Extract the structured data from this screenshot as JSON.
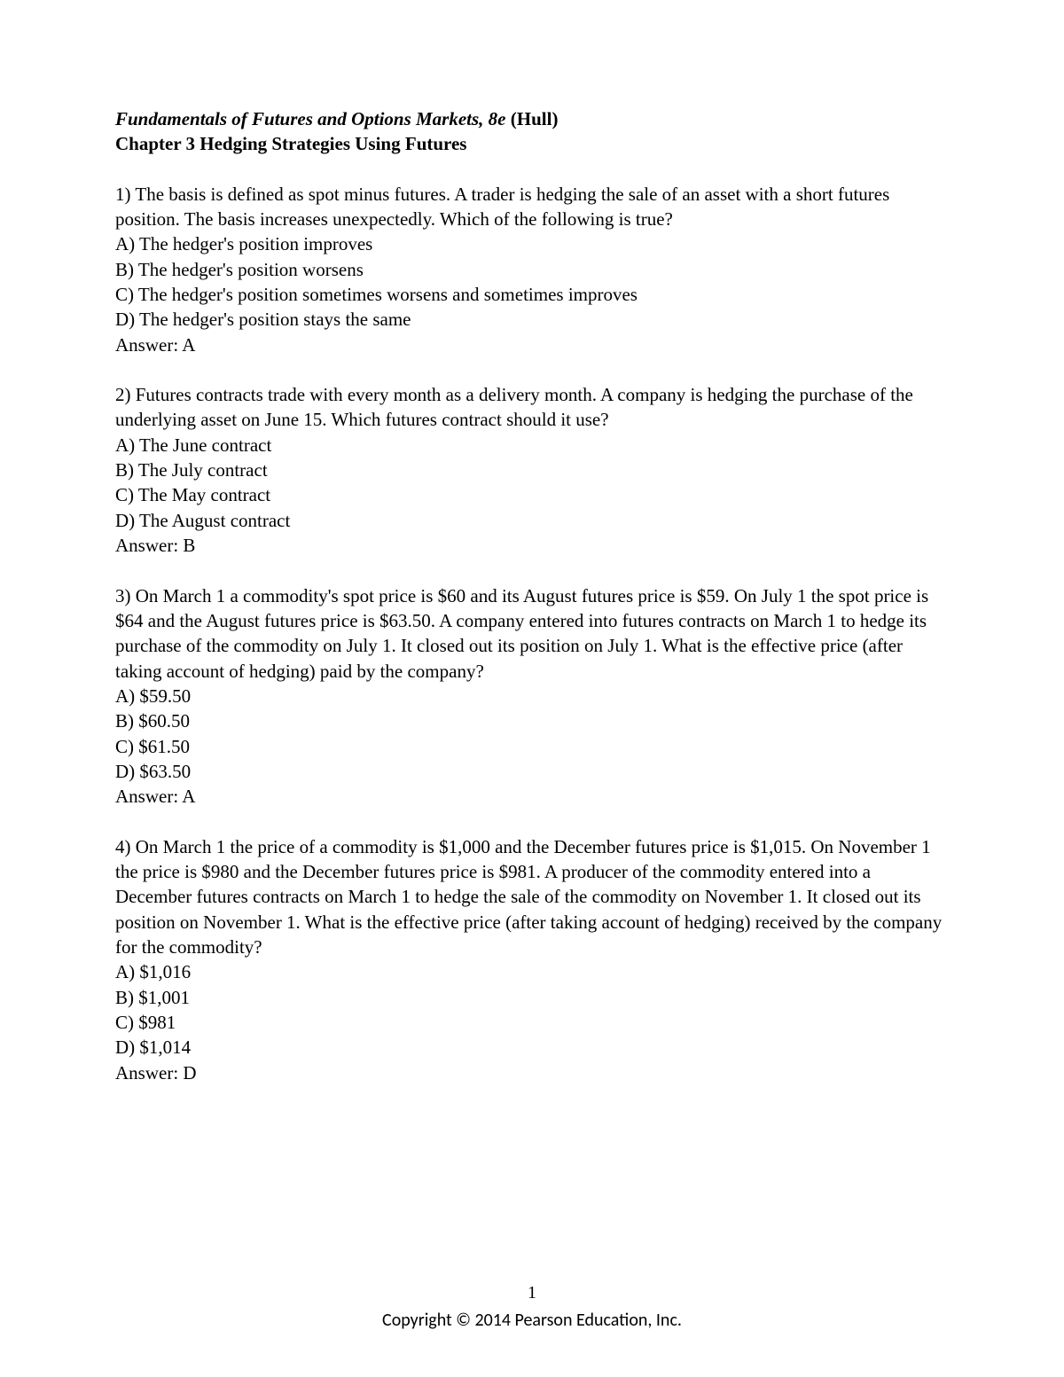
{
  "header": {
    "book_title": "Fundamentals of Futures and Options Markets, 8e",
    "author": " (Hull)",
    "chapter": "Chapter 3   Hedging Strategies Using Futures"
  },
  "questions": [
    {
      "number": "1)",
      "text": " The basis is defined as spot minus futures. A trader is hedging the sale of an asset with a short futures position. The basis increases unexpectedly. Which of the following is true?",
      "options": {
        "A": "A) The hedger's position improves",
        "B": "B) The hedger's position worsens",
        "C": "C) The hedger's position sometimes worsens and sometimes improves",
        "D": "D) The hedger's position stays the same"
      },
      "answer": "Answer:  A"
    },
    {
      "number": "2)",
      "text": " Futures contracts trade with every month as a delivery month. A company is hedging the purchase of the underlying asset on June 15. Which futures contract should it use?",
      "options": {
        "A": "A) The June contract",
        "B": "B) The July contract",
        "C": "C) The May contract",
        "D": "D) The August contract"
      },
      "answer": "Answer:  B"
    },
    {
      "number": "3)",
      "text": " On March 1 a commodity's spot price is $60 and its August futures price is $59. On July 1 the spot price is $64 and the August futures price is $63.50. A company entered into futures contracts on March 1 to hedge its purchase of the commodity on July 1. It closed out its position on July 1. What is the effective price (after taking account of hedging) paid by the company?",
      "options": {
        "A": "A) $59.50",
        "B": "B) $60.50",
        "C": "C) $61.50",
        "D": "D) $63.50"
      },
      "answer": "Answer:  A"
    },
    {
      "number": "4)",
      "text": " On March 1 the price of a commodity is $1,000 and the December futures price is $1,015. On November 1 the price is $980 and the December futures price is $981. A producer of the commodity entered into a December futures contracts on March 1 to hedge the sale of the commodity on November 1. It closed out its position on November 1. What is the effective price (after taking account of hedging) received by the company for the commodity?",
      "options": {
        "A": "A) $1,016",
        "B": "B) $1,001",
        "C": "C) $981",
        "D": "D) $1,014"
      },
      "answer": "Answer:  D"
    }
  ],
  "footer": {
    "page_number": "1",
    "copyright": "Copyright © 2014 Pearson Education, Inc."
  }
}
